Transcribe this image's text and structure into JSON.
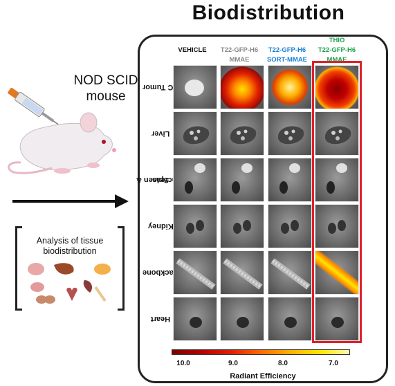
{
  "title": "Biodistribution",
  "mouse_label": {
    "line1": "NOD SCID",
    "line2": "mouse"
  },
  "analysis_label": {
    "line1": "Analysis of tissue",
    "line2": "biodistribution"
  },
  "columns": [
    {
      "line1": "VEHICLE",
      "line2": "",
      "line3": "",
      "color": "#111111"
    },
    {
      "line1": "T22-GFP-H6",
      "line2": "MMAE",
      "line3": "",
      "color": "#8a8a8a"
    },
    {
      "line1": "T22-GFP-H6",
      "line2": "SORT-MMAE",
      "line3": "",
      "color": "#1a7fd6"
    },
    {
      "line1": "THIO",
      "line2": "T22-GFP-H6",
      "line3": "MMAE",
      "color": "#1aa34a"
    }
  ],
  "rows": [
    {
      "line1": "SC Tumor",
      "line2": ""
    },
    {
      "line1": "Liver",
      "line2": ""
    },
    {
      "line1": "Spleen &",
      "line2": "Pancreas"
    },
    {
      "line1": "Kidney",
      "line2": ""
    },
    {
      "line1": "Backbone",
      "line2": ""
    },
    {
      "line1": "Heart",
      "line2": ""
    }
  ],
  "colorbar": {
    "ticks": [
      "10.0",
      "9.0",
      "8.0",
      "7.0"
    ],
    "label": "Radiant Efficiency"
  },
  "highlight_color": "#e0202a"
}
